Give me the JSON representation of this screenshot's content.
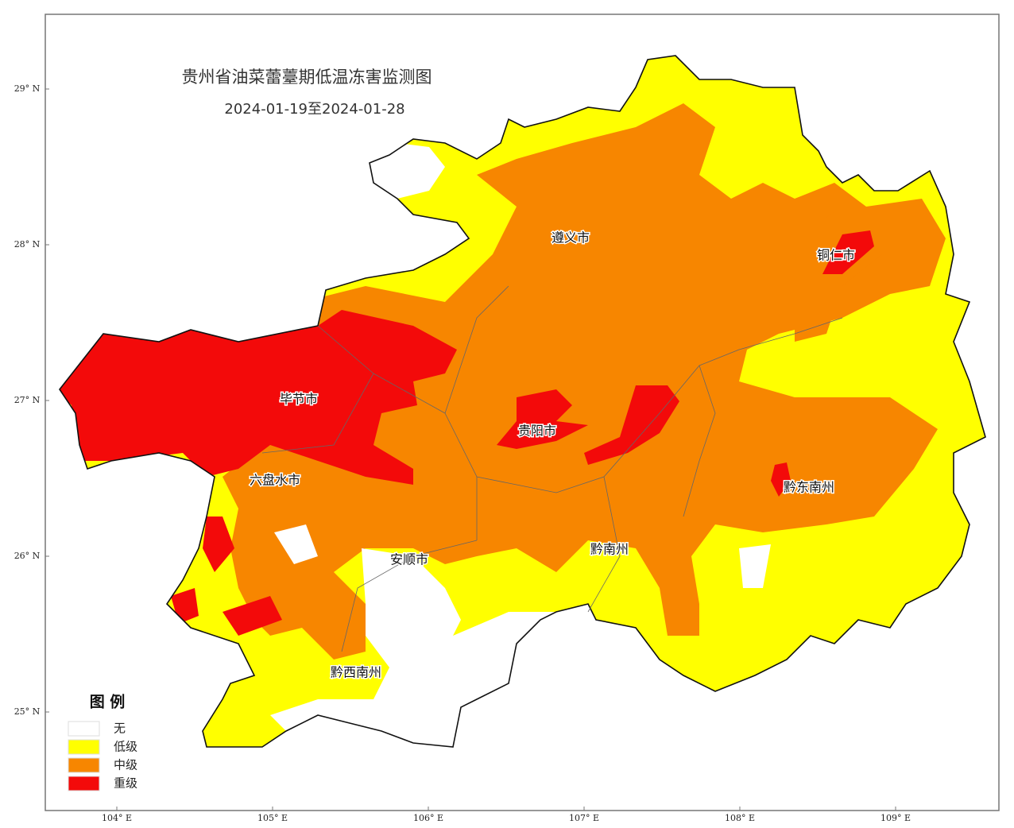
{
  "title": "贵州省油菜蕾薹期低温冻害监测图",
  "subtitle": "2024-01-19至2024-01-28",
  "lat_labels": [
    "29° N",
    "28° N",
    "27° N",
    "26° N",
    "25° N"
  ],
  "lon_labels": [
    "104° E",
    "105° E",
    "106° E",
    "107° E",
    "108° E",
    "109° E"
  ],
  "cities": [
    "遵义市",
    "铜仁市",
    "毕节市",
    "贵阳市",
    "六盘水市",
    "黔东南州",
    "黔南州",
    "安顺市",
    "黔西南州"
  ],
  "legend": {
    "title": "图 例",
    "items": [
      {
        "label": "无",
        "color": "#ffffff"
      },
      {
        "label": "低级",
        "color": "#ffff00"
      },
      {
        "label": "中级",
        "color": "#f78600"
      },
      {
        "label": "重级",
        "color": "#f30a0a"
      }
    ]
  }
}
